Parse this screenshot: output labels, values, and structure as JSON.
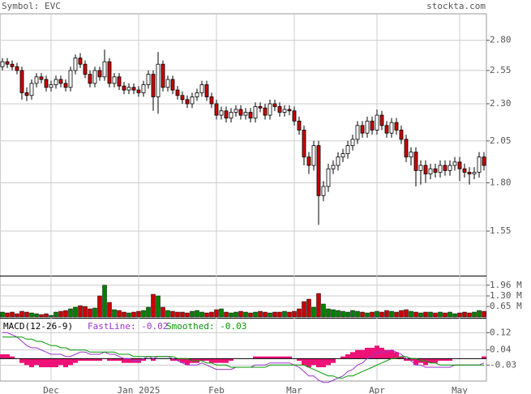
{
  "chart_data": {
    "type": "candlestick",
    "title": "Symbol: EVC",
    "source": "stockta.com",
    "categories": [
      null,
      null,
      null,
      null,
      null,
      null,
      null,
      null,
      null,
      null,
      "Dec",
      null,
      null,
      null,
      null,
      null,
      null,
      null,
      null,
      null,
      null,
      null,
      null,
      null,
      null,
      null,
      null,
      null,
      "Jan 2025",
      null,
      null,
      null,
      null,
      null,
      null,
      null,
      null,
      null,
      null,
      null,
      null,
      null,
      null,
      null,
      "Feb",
      null,
      null,
      null,
      null,
      null,
      null,
      null,
      null,
      null,
      null,
      null,
      null,
      null,
      null,
      null,
      "Mar",
      null,
      null,
      null,
      null,
      null,
      null,
      null,
      null,
      null,
      null,
      null,
      null,
      null,
      null,
      null,
      null,
      "Apr",
      null,
      null,
      null,
      null,
      null,
      null,
      null,
      null,
      null,
      null,
      null,
      null,
      null,
      null,
      null,
      null,
      "May",
      null,
      null,
      null,
      null,
      null
    ],
    "open": [
      2.58,
      2.62,
      2.6,
      2.58,
      2.55,
      2.38,
      2.36,
      2.45,
      2.5,
      2.48,
      2.42,
      2.44,
      2.48,
      2.45,
      2.42,
      2.55,
      2.65,
      2.6,
      2.52,
      2.45,
      2.55,
      2.5,
      2.62,
      2.45,
      2.5,
      2.43,
      2.4,
      2.42,
      2.4,
      2.38,
      2.44,
      2.52,
      2.35,
      2.6,
      2.42,
      2.48,
      2.4,
      2.36,
      2.33,
      2.3,
      2.35,
      2.38,
      2.44,
      2.35,
      2.3,
      2.22,
      2.25,
      2.2,
      2.24,
      2.26,
      2.22,
      2.24,
      2.2,
      2.28,
      2.27,
      2.22,
      2.3,
      2.28,
      2.24,
      2.26,
      2.25,
      2.18,
      2.12,
      1.95,
      1.9,
      2.02,
      1.73,
      1.78,
      1.88,
      1.9,
      1.95,
      1.97,
      2.02,
      2.06,
      2.15,
      2.1,
      2.18,
      2.12,
      2.22,
      2.15,
      2.1,
      2.17,
      2.12,
      2.06,
      1.95,
      1.98,
      1.87,
      1.9,
      1.85,
      1.88,
      1.86,
      1.9,
      1.87,
      1.9,
      1.92,
      1.88,
      1.86,
      1.85,
      1.86,
      1.95
    ],
    "high": [
      2.65,
      2.65,
      2.63,
      2.61,
      2.58,
      2.42,
      2.48,
      2.53,
      2.53,
      2.51,
      2.47,
      2.51,
      2.51,
      2.48,
      2.58,
      2.68,
      2.69,
      2.63,
      2.55,
      2.58,
      2.58,
      2.72,
      2.65,
      2.53,
      2.53,
      2.46,
      2.45,
      2.45,
      2.43,
      2.47,
      2.55,
      2.55,
      2.7,
      2.63,
      2.51,
      2.51,
      2.43,
      2.39,
      2.36,
      2.38,
      2.41,
      2.47,
      2.47,
      2.38,
      2.33,
      2.28,
      2.28,
      2.27,
      2.29,
      2.29,
      2.27,
      2.27,
      2.31,
      2.31,
      2.3,
      2.33,
      2.33,
      2.31,
      2.29,
      2.29,
      2.28,
      2.21,
      2.15,
      1.98,
      2.05,
      2.05,
      1.81,
      1.91,
      1.93,
      1.98,
      2.0,
      2.05,
      2.09,
      2.18,
      2.18,
      2.21,
      2.21,
      2.26,
      2.25,
      2.18,
      2.2,
      2.2,
      2.15,
      2.09,
      2.01,
      2.01,
      1.93,
      1.93,
      1.91,
      1.91,
      1.93,
      1.93,
      1.93,
      1.95,
      1.95,
      1.91,
      1.89,
      1.89,
      1.98,
      1.98
    ],
    "low": [
      2.55,
      2.57,
      2.55,
      2.52,
      2.33,
      2.32,
      2.33,
      2.42,
      2.45,
      2.39,
      2.39,
      2.41,
      2.42,
      2.39,
      2.39,
      2.52,
      2.57,
      2.49,
      2.42,
      2.42,
      2.47,
      2.47,
      2.42,
      2.42,
      2.4,
      2.37,
      2.37,
      2.37,
      2.35,
      2.35,
      2.41,
      2.25,
      2.23,
      2.39,
      2.39,
      2.37,
      2.33,
      2.3,
      2.27,
      2.27,
      2.32,
      2.35,
      2.32,
      2.27,
      2.19,
      2.19,
      2.17,
      2.17,
      2.21,
      2.19,
      2.19,
      2.17,
      2.17,
      2.24,
      2.19,
      2.19,
      2.25,
      2.21,
      2.21,
      2.22,
      2.15,
      2.09,
      1.9,
      1.85,
      1.87,
      1.58,
      1.7,
      1.75,
      1.85,
      1.87,
      1.92,
      1.94,
      1.99,
      2.03,
      2.07,
      2.07,
      2.09,
      2.09,
      2.12,
      2.07,
      2.07,
      2.09,
      2.03,
      1.92,
      1.9,
      1.78,
      1.79,
      1.8,
      1.82,
      1.83,
      1.83,
      1.84,
      1.84,
      1.87,
      1.81,
      1.83,
      1.79,
      1.82,
      1.83,
      1.87
    ],
    "close": [
      2.62,
      2.6,
      2.58,
      2.55,
      2.38,
      2.36,
      2.45,
      2.5,
      2.48,
      2.42,
      2.44,
      2.48,
      2.45,
      2.42,
      2.55,
      2.65,
      2.6,
      2.52,
      2.45,
      2.55,
      2.5,
      2.62,
      2.45,
      2.5,
      2.43,
      2.4,
      2.42,
      2.4,
      2.38,
      2.44,
      2.52,
      2.35,
      2.6,
      2.42,
      2.48,
      2.4,
      2.36,
      2.33,
      2.3,
      2.35,
      2.38,
      2.44,
      2.35,
      2.3,
      2.22,
      2.25,
      2.2,
      2.24,
      2.26,
      2.22,
      2.24,
      2.2,
      2.28,
      2.27,
      2.22,
      2.3,
      2.28,
      2.24,
      2.26,
      2.25,
      2.18,
      2.12,
      1.95,
      1.9,
      2.02,
      1.73,
      1.78,
      1.88,
      1.9,
      1.95,
      1.97,
      2.02,
      2.06,
      2.15,
      2.1,
      2.18,
      2.12,
      2.22,
      2.15,
      2.1,
      2.17,
      2.12,
      2.06,
      1.95,
      1.98,
      1.87,
      1.9,
      1.85,
      1.88,
      1.86,
      1.9,
      1.87,
      1.9,
      1.92,
      1.88,
      1.86,
      1.85,
      1.86,
      1.95,
      1.9
    ],
    "ylim": [
      1.35,
      3.04
    ],
    "log_scale": true,
    "grid": true,
    "yticks": [
      {
        "value": 2.8,
        "label": "2.80"
      },
      {
        "value": 2.55,
        "label": "2.55"
      },
      {
        "value": 2.3,
        "label": "2.30"
      },
      {
        "value": 2.05,
        "label": "2.05"
      },
      {
        "value": 1.8,
        "label": "1.80"
      },
      {
        "value": 1.55,
        "label": "1.55"
      }
    ],
    "up_color": "#ffffff",
    "down_color": "#cc0000",
    "volume": {
      "values": [
        0.3,
        0.25,
        0.3,
        0.2,
        0.35,
        0.3,
        0.25,
        0.2,
        0.15,
        0.2,
        0.1,
        0.3,
        0.35,
        0.4,
        0.5,
        0.6,
        0.7,
        0.65,
        0.5,
        0.55,
        1.3,
        1.96,
        0.9,
        0.45,
        0.4,
        0.3,
        0.25,
        0.3,
        0.35,
        0.4,
        0.6,
        1.4,
        1.3,
        0.6,
        0.4,
        0.35,
        0.3,
        0.3,
        0.25,
        0.35,
        0.4,
        0.3,
        0.25,
        0.3,
        0.45,
        0.5,
        0.3,
        0.25,
        0.3,
        0.35,
        0.3,
        0.25,
        0.3,
        0.35,
        0.3,
        0.25,
        0.3,
        0.3,
        0.35,
        0.3,
        0.35,
        0.5,
        0.95,
        1.1,
        0.6,
        1.45,
        0.8,
        0.5,
        0.45,
        0.4,
        0.35,
        0.3,
        0.4,
        0.35,
        0.3,
        0.25,
        0.3,
        0.35,
        0.3,
        0.4,
        0.35,
        0.3,
        0.4,
        0.45,
        0.35,
        0.3,
        0.25,
        0.3,
        0.3,
        0.25,
        0.3,
        0.25,
        0.3,
        0.2,
        0.25,
        0.3,
        0.25,
        0.3,
        0.4,
        0.35
      ],
      "ylim": [
        0,
        2.45
      ],
      "yticks": [
        {
          "value": 1.96,
          "label": "1.96 M"
        },
        {
          "value": 1.3,
          "label": "1.30 M"
        },
        {
          "value": 0.65,
          "label": "0.65 M"
        }
      ],
      "up_color": "#008000",
      "down_color": "#cc0000"
    },
    "macd": {
      "title": "MACD(12-26-9)",
      "fast_label": "FastLine: -0.02",
      "smooth_label": "Smoothed: -0.03",
      "ylim": [
        -0.1,
        0.17
      ],
      "yticks": [
        0.12,
        0.04,
        -0.03
      ],
      "fast": {
        "color": "#9933cc",
        "values": [
          0.12,
          0.12,
          0.11,
          0.1,
          0.08,
          0.06,
          0.05,
          0.05,
          0.04,
          0.03,
          0.02,
          0.02,
          0.02,
          0.01,
          0.01,
          0.02,
          0.03,
          0.03,
          0.02,
          0.02,
          0.02,
          0.03,
          0.02,
          0.02,
          0.01,
          0.0,
          0.0,
          -0.01,
          -0.01,
          0.0,
          0.01,
          0.0,
          0.01,
          0.01,
          0.01,
          0.0,
          -0.01,
          -0.02,
          -0.03,
          -0.03,
          -0.03,
          -0.02,
          -0.03,
          -0.04,
          -0.05,
          -0.05,
          -0.05,
          -0.05,
          -0.04,
          -0.04,
          -0.04,
          -0.04,
          -0.03,
          -0.03,
          -0.03,
          -0.02,
          -0.02,
          -0.02,
          -0.02,
          -0.02,
          -0.03,
          -0.04,
          -0.06,
          -0.08,
          -0.08,
          -0.1,
          -0.11,
          -0.11,
          -0.1,
          -0.09,
          -0.08,
          -0.06,
          -0.05,
          -0.03,
          -0.02,
          0.0,
          0.01,
          0.03,
          0.03,
          0.03,
          0.04,
          0.03,
          0.02,
          0.0,
          -0.01,
          -0.03,
          -0.03,
          -0.04,
          -0.04,
          -0.04,
          -0.04,
          -0.04,
          -0.04,
          -0.03,
          -0.03,
          -0.03,
          -0.03,
          -0.03,
          -0.03,
          -0.02
        ]
      },
      "smoothed": {
        "color": "#009900",
        "values": [
          0.1,
          0.1,
          0.1,
          0.1,
          0.1,
          0.09,
          0.09,
          0.08,
          0.08,
          0.07,
          0.06,
          0.06,
          0.05,
          0.05,
          0.04,
          0.04,
          0.04,
          0.04,
          0.03,
          0.03,
          0.03,
          0.03,
          0.03,
          0.03,
          0.02,
          0.02,
          0.02,
          0.01,
          0.01,
          0.01,
          0.01,
          0.01,
          0.01,
          0.01,
          0.01,
          0.01,
          0.0,
          0.0,
          0.0,
          -0.01,
          -0.01,
          -0.01,
          -0.02,
          -0.02,
          -0.03,
          -0.03,
          -0.03,
          -0.04,
          -0.04,
          -0.04,
          -0.04,
          -0.04,
          -0.04,
          -0.04,
          -0.04,
          -0.03,
          -0.03,
          -0.03,
          -0.03,
          -0.03,
          -0.03,
          -0.03,
          -0.03,
          -0.04,
          -0.05,
          -0.06,
          -0.07,
          -0.08,
          -0.08,
          -0.09,
          -0.09,
          -0.08,
          -0.08,
          -0.07,
          -0.06,
          -0.05,
          -0.04,
          -0.03,
          -0.02,
          -0.01,
          0.0,
          0.0,
          0.01,
          0.01,
          0.0,
          0.0,
          -0.01,
          -0.01,
          -0.02,
          -0.02,
          -0.03,
          -0.03,
          -0.03,
          -0.03,
          -0.03,
          -0.03,
          -0.03,
          -0.03,
          -0.03,
          -0.03
        ]
      },
      "histogram": {
        "color": "#ee1177",
        "values": [
          0.02,
          0.02,
          0.01,
          0.0,
          -0.02,
          -0.03,
          -0.04,
          -0.03,
          -0.04,
          -0.04,
          -0.04,
          -0.04,
          -0.03,
          -0.04,
          -0.03,
          -0.02,
          -0.01,
          -0.01,
          -0.01,
          -0.01,
          -0.01,
          0.0,
          -0.01,
          -0.01,
          -0.01,
          -0.02,
          -0.02,
          -0.02,
          -0.02,
          -0.01,
          0.0,
          -0.01,
          0.0,
          0.0,
          0.0,
          -0.01,
          -0.01,
          -0.02,
          -0.03,
          -0.02,
          -0.02,
          -0.01,
          -0.01,
          -0.02,
          -0.02,
          -0.02,
          -0.02,
          -0.01,
          0.0,
          0.0,
          0.0,
          0.0,
          0.01,
          0.01,
          0.01,
          0.01,
          0.01,
          0.01,
          0.01,
          0.01,
          0.0,
          -0.01,
          -0.03,
          -0.04,
          -0.03,
          -0.04,
          -0.04,
          -0.03,
          -0.02,
          0.0,
          0.01,
          0.02,
          0.03,
          0.04,
          0.04,
          0.05,
          0.05,
          0.06,
          0.05,
          0.04,
          0.04,
          0.03,
          0.01,
          -0.01,
          -0.01,
          -0.03,
          -0.02,
          -0.03,
          -0.02,
          -0.02,
          -0.01,
          -0.01,
          -0.01,
          0.0,
          0.0,
          0.0,
          0.0,
          0.0,
          0.0,
          0.01
        ]
      }
    }
  }
}
